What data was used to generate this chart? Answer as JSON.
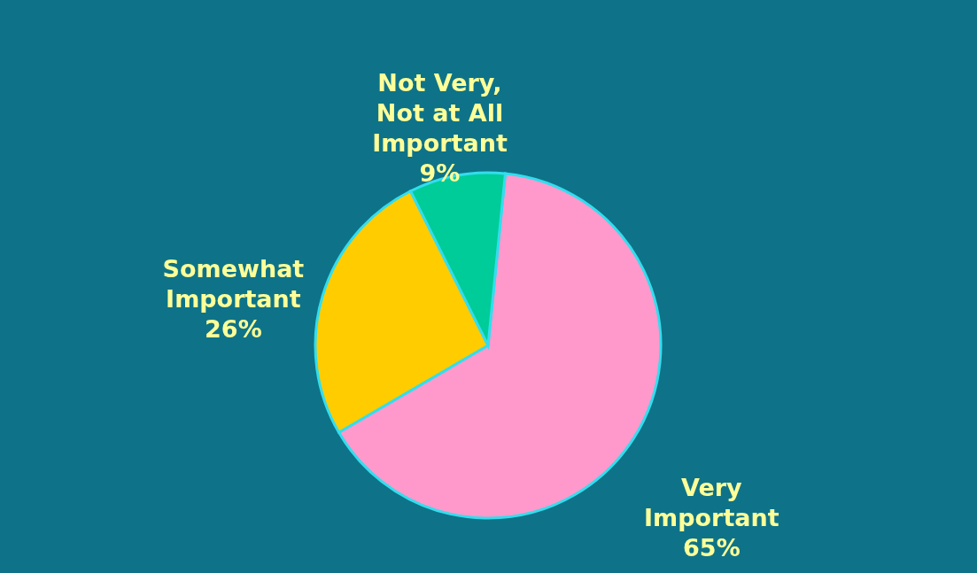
{
  "chart_data": {
    "type": "pie",
    "categories": [
      "Very\nImportant",
      "Somewhat\nImportant",
      "Not Very,\nNot at All\nImportant"
    ],
    "values": [
      65,
      26,
      9
    ],
    "value_labels": [
      "65%",
      "26%",
      "9%"
    ],
    "colors": [
      "#ff99cc",
      "#ffcc00",
      "#00cc99"
    ]
  }
}
